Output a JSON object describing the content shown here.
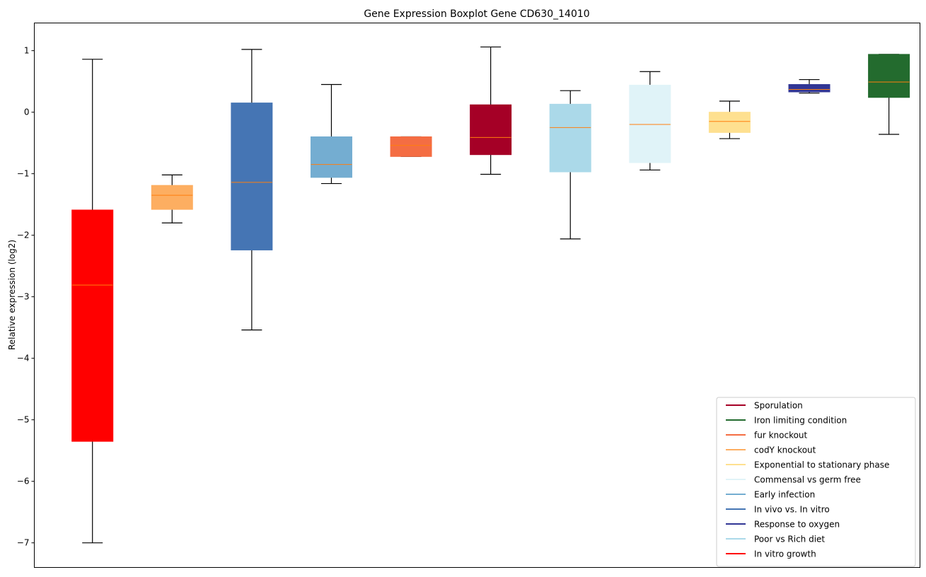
{
  "chart_data": {
    "type": "boxplot",
    "title": "Gene Expression Boxplot Gene CD630_14010",
    "xlabel": "",
    "ylabel": "Relative expression (log2)",
    "ylim": [
      -7.4,
      1.45
    ],
    "yticks": [
      1,
      0,
      -1,
      -2,
      -3,
      -4,
      -5,
      -6,
      -7
    ],
    "ytick_labels": [
      "1",
      "0",
      "−1",
      "−2",
      "−3",
      "−4",
      "−5",
      "−6",
      "−7"
    ],
    "grid": false,
    "legend_position": "bottom-right",
    "median_color": "#ff7f0e",
    "boxes": [
      {
        "name": "In vitro growth",
        "color": "#ff0000",
        "whisker_low": -7.0,
        "q1": -5.35,
        "median": -2.81,
        "q3": -1.59,
        "whisker_high": 0.86
      },
      {
        "name": "codY knockout",
        "color": "#fdae61",
        "whisker_low": -1.8,
        "q1": -1.58,
        "median": -1.35,
        "q3": -1.19,
        "whisker_high": -1.02
      },
      {
        "name": "In vivo vs. In vitro",
        "color": "#4575b4",
        "whisker_low": -3.54,
        "q1": -2.24,
        "median": -1.14,
        "q3": 0.15,
        "whisker_high": 1.02
      },
      {
        "name": "Early infection",
        "color": "#74add1",
        "whisker_low": -1.16,
        "q1": -1.06,
        "median": -0.85,
        "q3": -0.4,
        "whisker_high": 0.45
      },
      {
        "name": "fur knockout",
        "color": "#f46d43",
        "whisker_low": -0.72,
        "q1": -0.72,
        "median": -0.54,
        "q3": -0.4,
        "whisker_high": -0.4
      },
      {
        "name": "Sporulation",
        "color": "#a50026",
        "whisker_low": -1.01,
        "q1": -0.69,
        "median": -0.41,
        "q3": 0.12,
        "whisker_high": 1.06
      },
      {
        "name": "Poor vs Rich diet",
        "color": "#abd9e9",
        "whisker_low": -2.06,
        "q1": -0.97,
        "median": -0.25,
        "q3": 0.13,
        "whisker_high": 0.35
      },
      {
        "name": "Commensal vs germ free",
        "color": "#e0f3f8",
        "whisker_low": -0.94,
        "q1": -0.82,
        "median": -0.2,
        "q3": 0.44,
        "whisker_high": 0.66
      },
      {
        "name": "Exponential to stationary phase",
        "color": "#fee090",
        "whisker_low": -0.43,
        "q1": -0.33,
        "median": -0.15,
        "q3": 0.0,
        "whisker_high": 0.18
      },
      {
        "name": "Response to oxygen",
        "color": "#313695",
        "whisker_low": 0.31,
        "q1": 0.33,
        "median": 0.37,
        "q3": 0.45,
        "whisker_high": 0.53
      },
      {
        "name": "Iron limiting condition",
        "color": "#236b2e",
        "whisker_low": -0.36,
        "q1": 0.24,
        "median": 0.49,
        "q3": 0.94,
        "whisker_high": 0.94
      }
    ],
    "legend": [
      {
        "label": "Sporulation",
        "color": "#a50026"
      },
      {
        "label": "Iron limiting condition",
        "color": "#236b2e"
      },
      {
        "label": "fur knockout",
        "color": "#f46d43"
      },
      {
        "label": "codY knockout",
        "color": "#fdae61"
      },
      {
        "label": "Exponential to stationary phase",
        "color": "#fee090"
      },
      {
        "label": "Commensal vs germ free",
        "color": "#e0f3f8"
      },
      {
        "label": "Early infection",
        "color": "#74add1"
      },
      {
        "label": "In vivo vs. In vitro",
        "color": "#4575b4"
      },
      {
        "label": "Response to oxygen",
        "color": "#313695"
      },
      {
        "label": "Poor vs Rich diet",
        "color": "#abd9e9"
      },
      {
        "label": "In vitro growth",
        "color": "#ff0000"
      }
    ]
  }
}
